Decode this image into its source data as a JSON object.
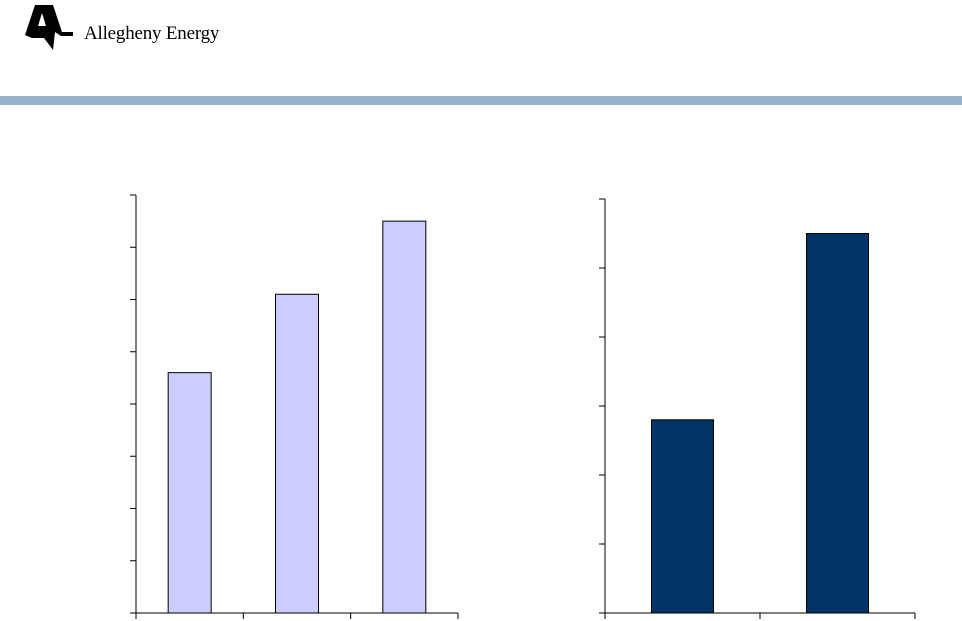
{
  "header": {
    "logo_text": "Allegheny Energy",
    "rule_color": "#97b2cc"
  },
  "chart_data": [
    {
      "type": "bar",
      "categories": [
        "",
        "",
        ""
      ],
      "values": [
        4.6,
        6.1,
        7.5
      ],
      "ylim": [
        0,
        8
      ],
      "y_ticks": 8,
      "title": "",
      "xlabel": "",
      "ylabel": "",
      "bar_color": "#ccccff",
      "bar_stroke": "#000000",
      "grid": false,
      "legend": "none"
    },
    {
      "type": "bar",
      "categories": [
        "",
        ""
      ],
      "values": [
        2.8,
        5.5
      ],
      "ylim": [
        0,
        6
      ],
      "y_ticks": 6,
      "title": "",
      "xlabel": "",
      "ylabel": "",
      "bar_color": "#003366",
      "bar_stroke": "#000000",
      "grid": false,
      "legend": "none"
    }
  ]
}
